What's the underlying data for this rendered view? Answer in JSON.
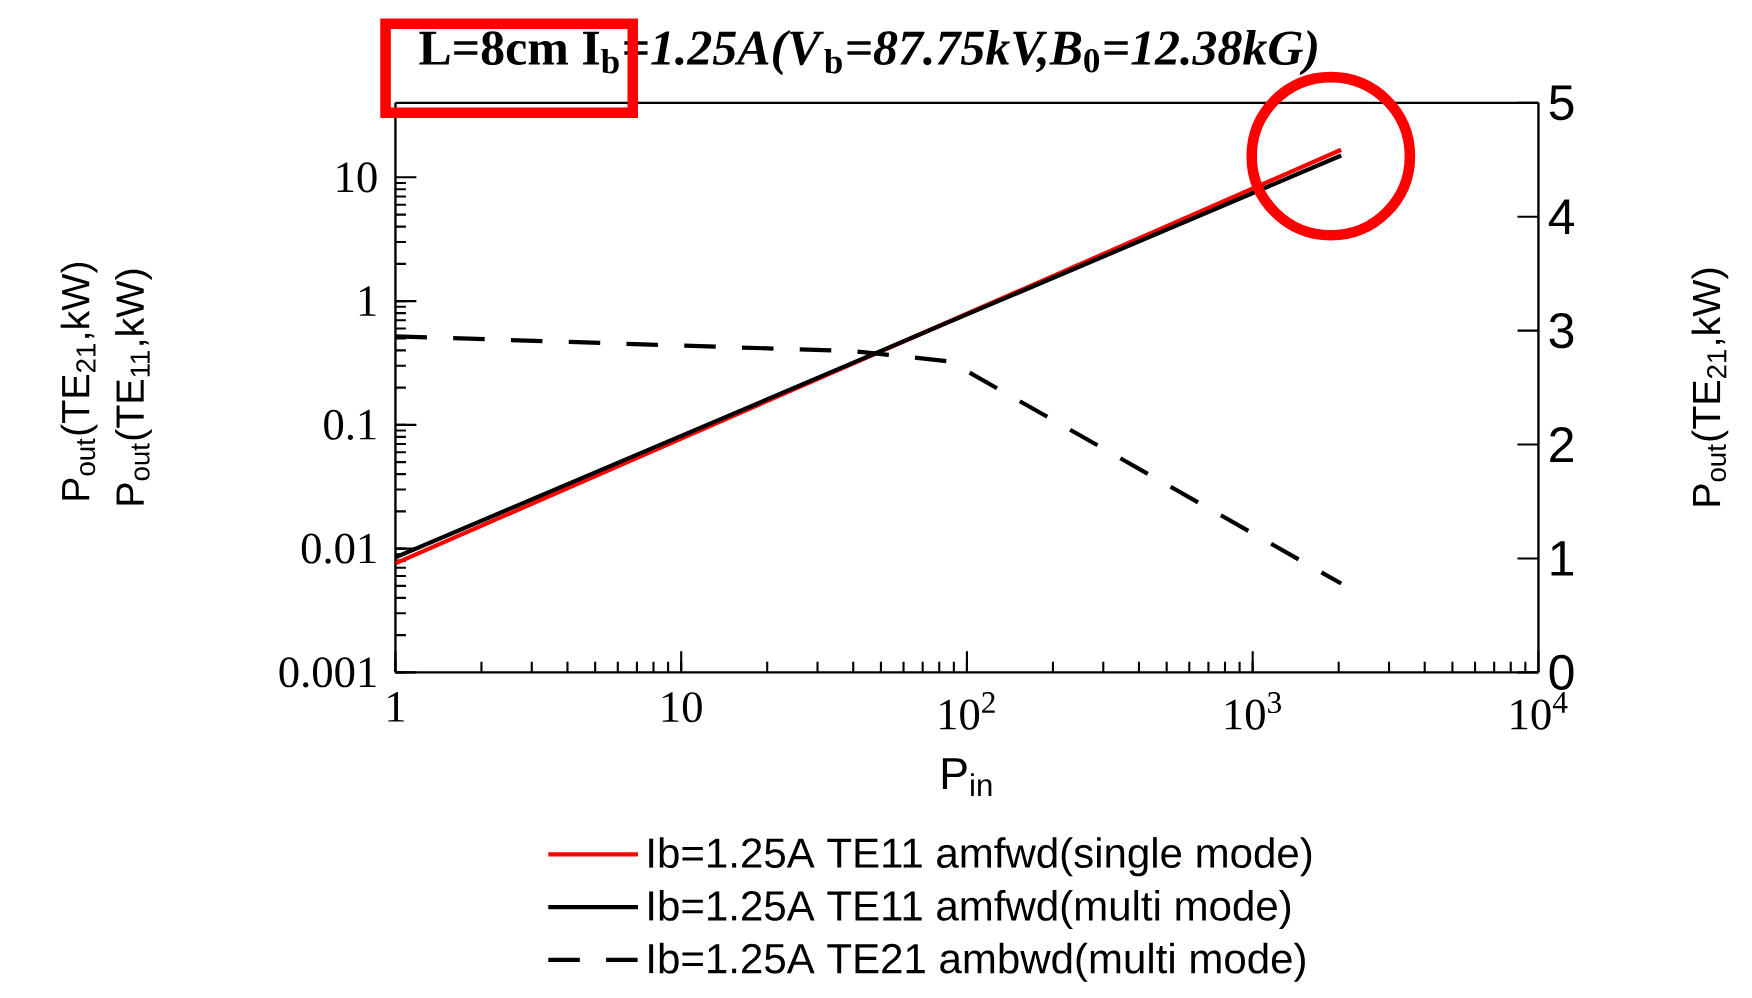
{
  "chart_data": {
    "type": "line",
    "title": "**L=8cm** I$_{b}$*=1.25A(V*$_{b}$*=87.75kV,B*$_{0}$*=12.38kG)*",
    "xlabel": "P$_{in}$",
    "ylabel": "P$_{out}$(TE$_{11}$,kW)",
    "y2label": "P$_{out}$(TE$_{21}$,kW)",
    "annotations": [
      "P$_{out}$(TE$_{21}$,kW)"
    ],
    "log": "xy",
    "xlim": [
      1,
      10000
    ],
    "ylim": [
      0.001,
      40
    ],
    "y2lim": [
      0,
      5
    ],
    "xticks": [
      1,
      10,
      {
        "value": 100,
        "label": "10$^{2}$"
      },
      {
        "value": 1000,
        "label": "10$^{3}$"
      },
      {
        "value": 10000,
        "label": "10$^{4}$"
      }
    ],
    "yticks": [
      0.001,
      0.01,
      0.1,
      1,
      10
    ],
    "y2ticks": [
      0,
      1,
      2,
      3,
      4,
      5
    ],
    "legend": "bottom",
    "series": [
      {
        "name": "Ib=1.25A TE11 amfwd(single mode)",
        "color": "#ff0000",
        "x": [
          1,
          100,
          2040
        ],
        "values": [
          0.0076,
          0.79,
          16.7
        ]
      },
      {
        "name": "Ib=1.25A TE11 amfwd(multi mode)",
        "color": "#000000",
        "x": [
          1,
          100,
          2040
        ],
        "values": [
          0.0085,
          0.78,
          15
        ]
      },
      {
        "name": "Ib=1.25A TE21 ambwd(multi mode)",
        "color": "#000000",
        "axis": "y2",
        "line_style": "dashed",
        "x": [
          1,
          40,
          87,
          2040
        ],
        "values": [
          2.95,
          2.82,
          2.73,
          0.78
        ]
      }
    ]
  }
}
